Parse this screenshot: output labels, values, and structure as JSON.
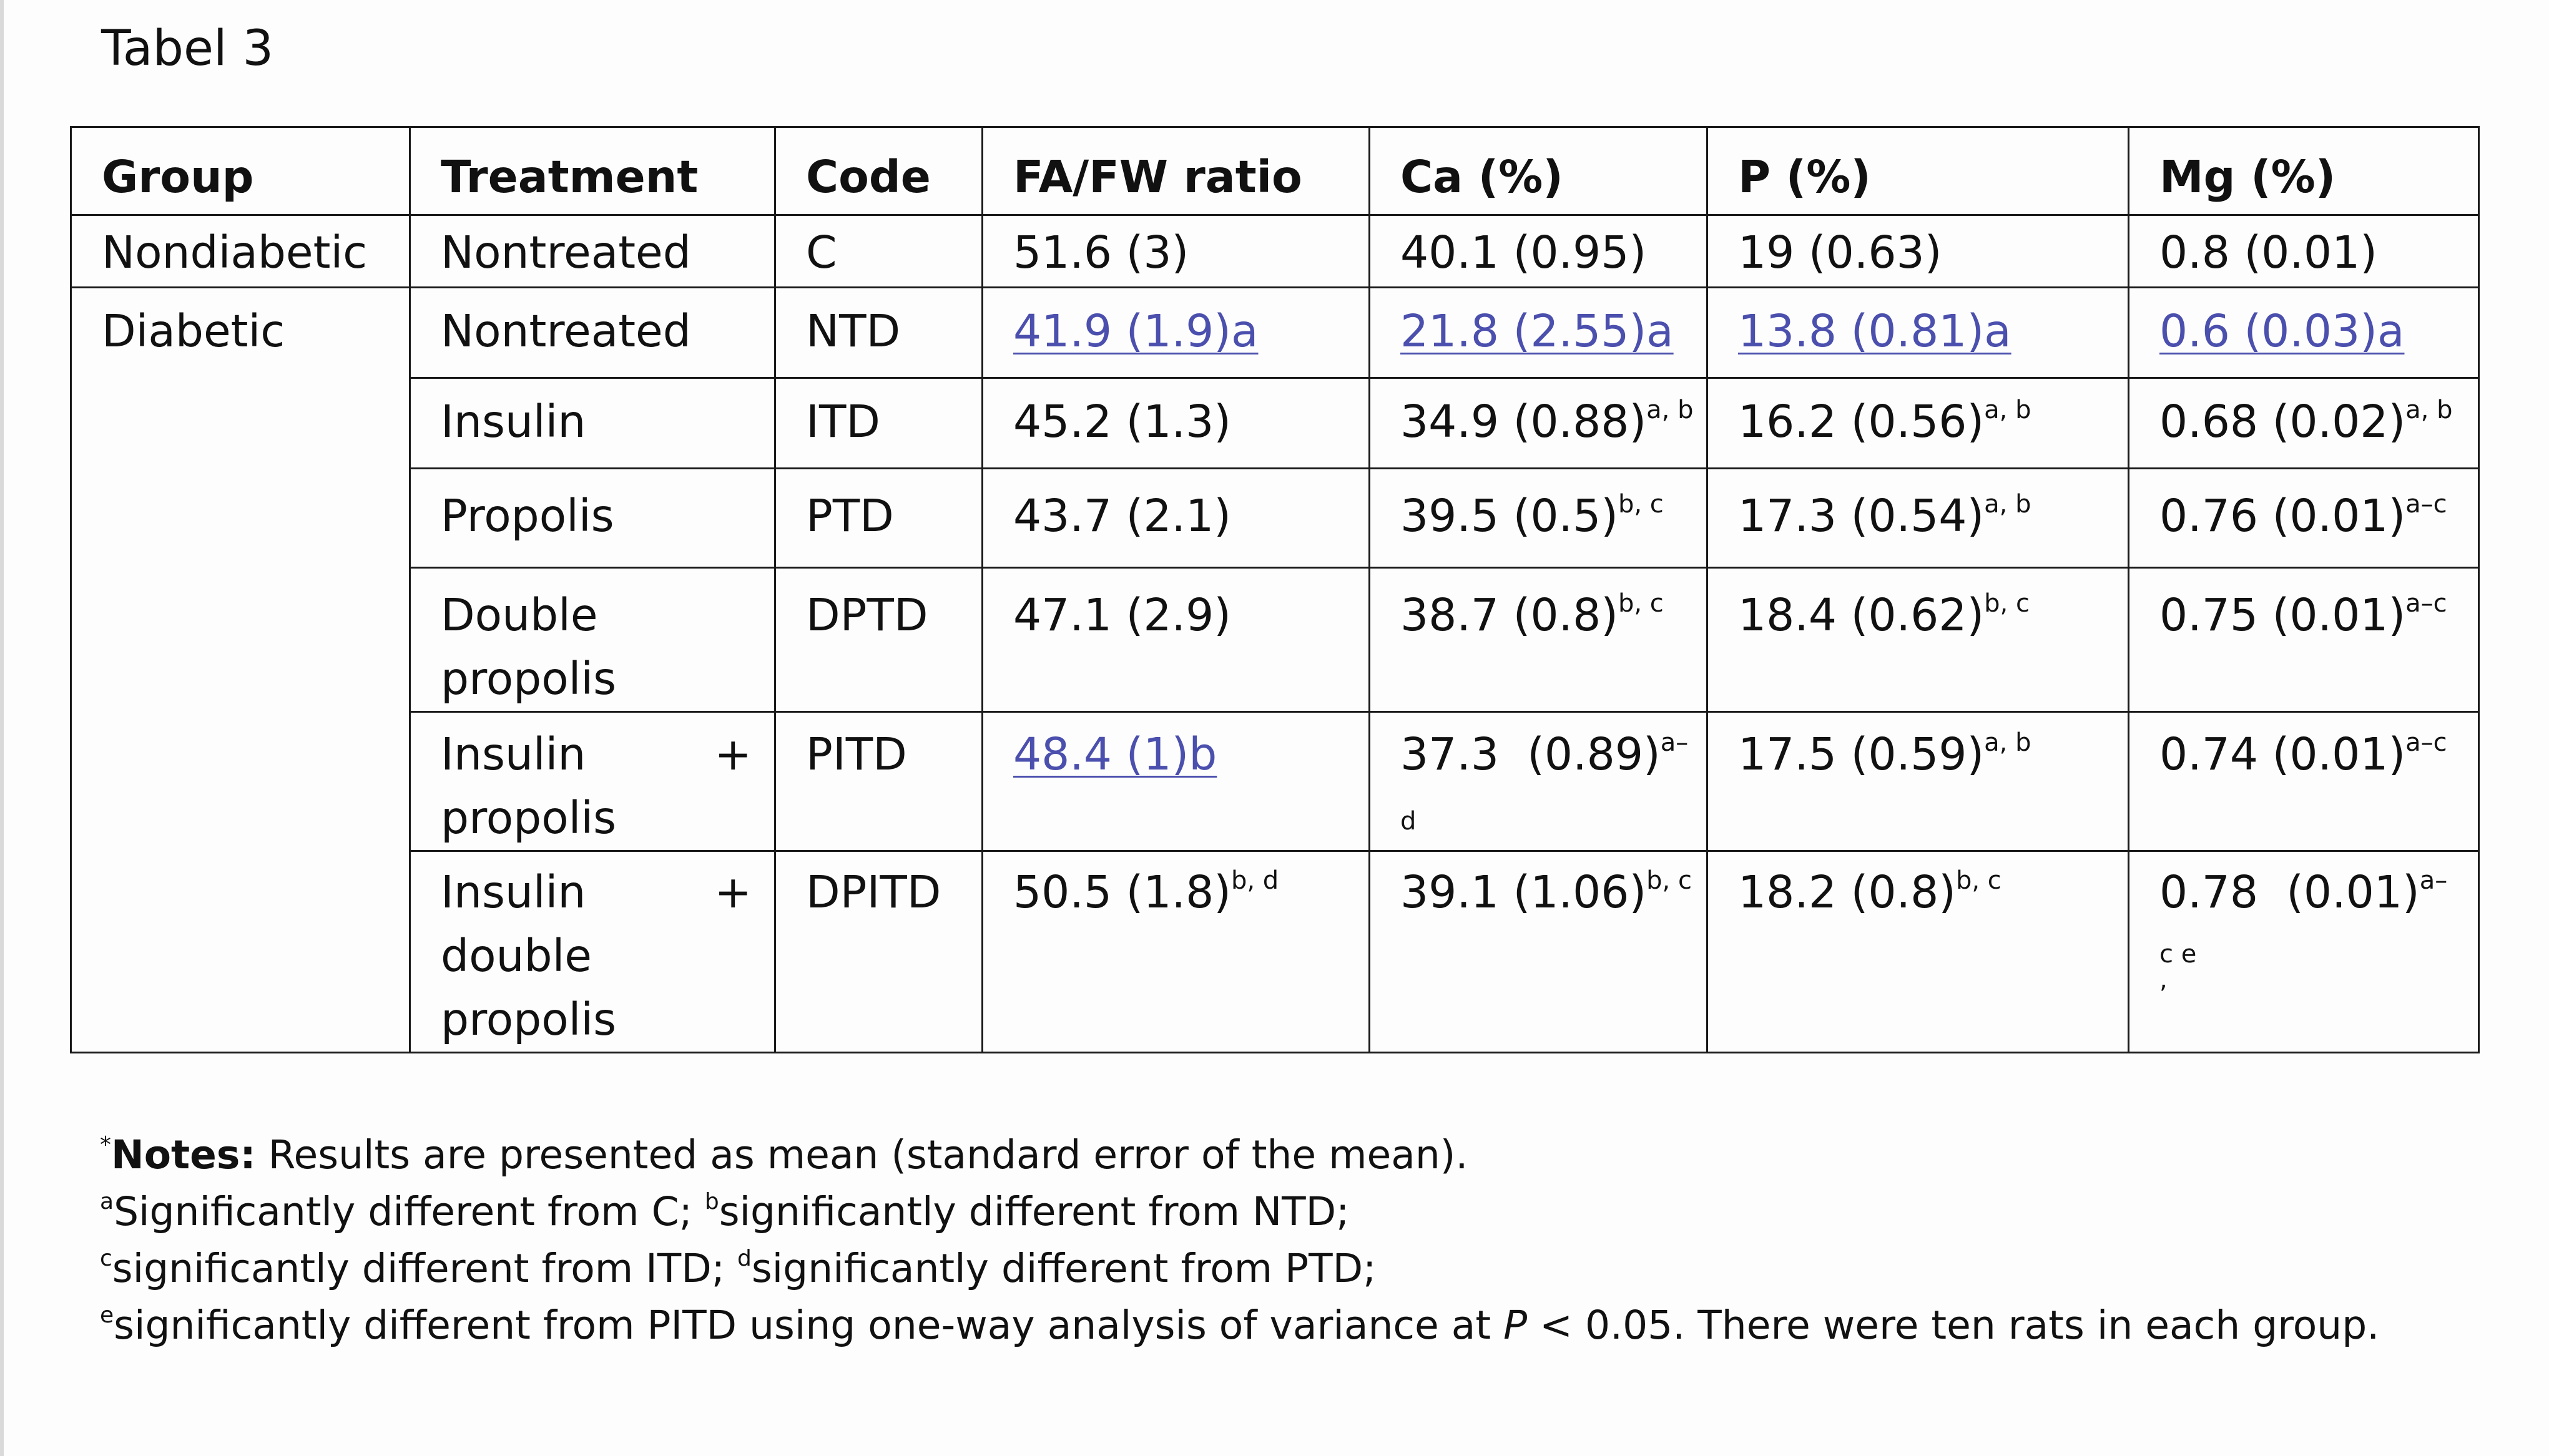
{
  "caption": "Tabel 3",
  "table": {
    "headers": [
      "Group",
      "Treatment",
      "Code",
      "FA/FW ratio",
      "Ca (%)",
      "P (%)",
      "Mg (%)"
    ],
    "rows": [
      {
        "group": "Nondiabetic",
        "treatment": "Nontreated",
        "code": "C",
        "fafw": "51.6 (3)",
        "ca": "40.1 (0.95)",
        "p": "19 (0.63)",
        "mg": "0.8 (0.01)"
      },
      {
        "group": "Diabetic",
        "treatment": "Nontreated",
        "code": "NTD",
        "fafw": "41.9 (1.9)a",
        "ca": "21.8 (2.55)a",
        "p": "13.8 (0.81)a",
        "mg": "0.6 (0.03)a"
      },
      {
        "treatment": "Insulin",
        "code": "ITD",
        "fafw": "45.2 (1.3)",
        "ca": "34.9 (0.88)",
        "ca_sup": "a, b",
        "p": "16.2 (0.56)",
        "p_sup": "a, b",
        "mg": "0.68 (0.02)",
        "mg_sup": "a, b"
      },
      {
        "treatment": "Propolis",
        "code": "PTD",
        "fafw": "43.7 (2.1)",
        "ca": "39.5 (0.5)",
        "ca_sup": "b, c",
        "p": "17.3 (0.54)",
        "p_sup": "a, b",
        "mg": "0.76 (0.01)",
        "mg_sup": "a–c"
      },
      {
        "treatment_1": "Double",
        "treatment_2": "propolis",
        "code": "DPTD",
        "fafw": "47.1 (2.9)",
        "ca": "38.7 (0.8)",
        "ca_sup": "b, c",
        "p": "18.4 (0.62)",
        "p_sup": "b, c",
        "mg": "0.75 (0.01)",
        "mg_sup": "a–c"
      },
      {
        "treatment_1": "Insulin",
        "plus": "+",
        "treatment_2": "propolis",
        "code": "PITD",
        "fafw": "48.4 (1)b",
        "ca": "37.3  (0.89)",
        "ca_sup": "a–",
        "ca_cont": "d",
        "p": "17.5 (0.59)",
        "p_sup": "a, b",
        "mg": "0.74 (0.01)",
        "mg_sup": "a–c"
      },
      {
        "treatment_1": "Insulin",
        "plus": "+",
        "treatment_2": "double",
        "treatment_3": "propolis",
        "code": "DPITD",
        "fafw": "50.5 (1.8)",
        "fafw_sup": "b, d",
        "ca": "39.1 (1.06)",
        "ca_sup": "b, c",
        "p": "18.2 (0.8)",
        "p_sup": "b, c",
        "mg": "0.78  (0.01)",
        "mg_sup": "a–",
        "mg_cont": "c e",
        "mg_cont2": ","
      }
    ]
  },
  "notes": {
    "star": "*",
    "label": "Notes:",
    "line1": " Results are presented as mean (standard error of the mean).",
    "a_mark": "a",
    "a_text": "Significantly different from C; ",
    "b_mark": "b",
    "b_text": "significantly different from NTD;",
    "c_mark": "c",
    "c_text": "significantly different from ITD; ",
    "d_mark": "d",
    "d_text": "significantly different from PTD;",
    "e_mark": "e",
    "e_text": "significantly different from PITD using one-way analysis of variance at ",
    "p_italic": "P",
    "e_tail": " < 0.05. There were ten rats in each group."
  }
}
